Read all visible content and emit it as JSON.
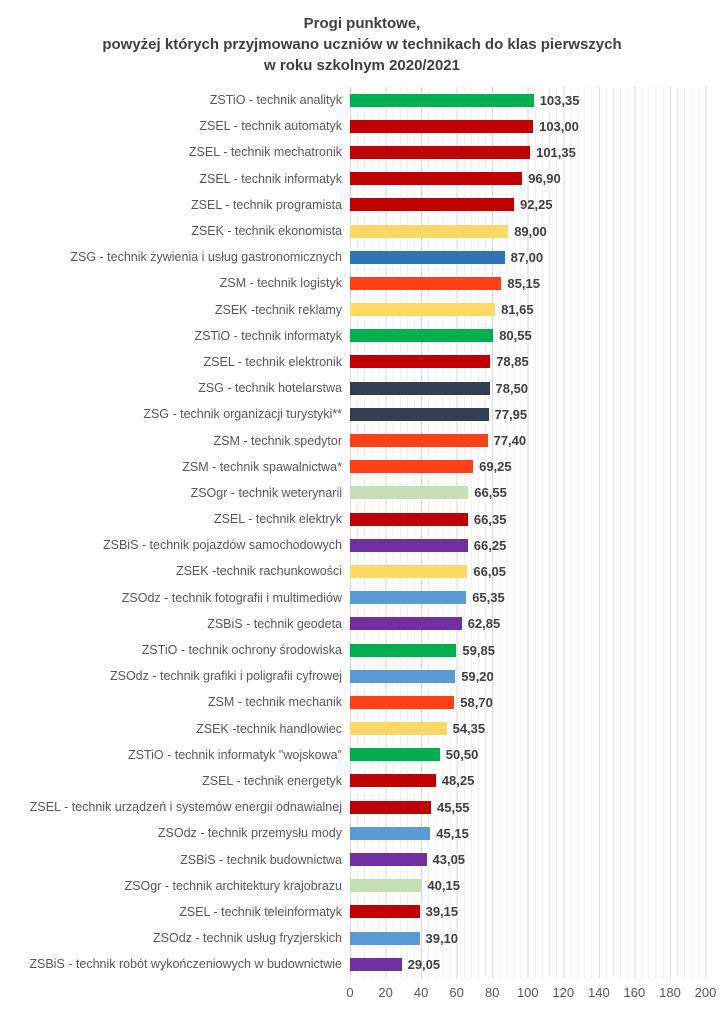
{
  "title": {
    "line1": "Progi punktowe,",
    "line2": "powyżej których przyjmowano uczniów w technikach do klas pierwszych",
    "line3": "w roku szkolnym 2020/2021"
  },
  "palette": {
    "green": "#00B050",
    "dark_red": "#C00000",
    "gold": "#FFD966",
    "steel_blue": "#2E75B6",
    "orange_red": "#FF4019",
    "dark_slate": "#333F50",
    "light_green": "#C5E0B4",
    "purple": "#7030A0",
    "light_blue": "#5B9BD5",
    "grid_major": "#d9d9d9",
    "grid_minor": "#f1f1f1",
    "label_gray": "#595959",
    "value_gray": "#404040"
  },
  "chart_data": {
    "type": "bar",
    "orientation": "horizontal",
    "title": "Progi punktowe, powyżej których przyjmowano uczniów w technikach do klas pierwszych w roku szkolnym 2020/2021",
    "xlabel": "",
    "ylabel": "",
    "xlim": [
      0,
      200
    ],
    "x_ticks": [
      0,
      20,
      40,
      60,
      80,
      100,
      120,
      140,
      160,
      180,
      200
    ],
    "grid": true,
    "legend": false,
    "bars": [
      {
        "label": "ZSTiO - technik analityk",
        "value": 103.35,
        "value_label": "103,35",
        "color": "#00B050"
      },
      {
        "label": "ZSEL - technik automatyk",
        "value": 103.0,
        "value_label": "103,00",
        "color": "#C00000"
      },
      {
        "label": "ZSEL - technik mechatronik",
        "value": 101.35,
        "value_label": "101,35",
        "color": "#C00000"
      },
      {
        "label": "ZSEL - technik informatyk",
        "value": 96.9,
        "value_label": "96,90",
        "color": "#C00000"
      },
      {
        "label": "ZSEL - technik programista",
        "value": 92.25,
        "value_label": "92,25",
        "color": "#C00000"
      },
      {
        "label": "ZSEK - technik ekonomista",
        "value": 89.0,
        "value_label": "89,00",
        "color": "#FFD966"
      },
      {
        "label": "ZSG - technik żywienia i usług gastronomicznych",
        "value": 87.0,
        "value_label": "87,00",
        "color": "#2E75B6"
      },
      {
        "label": "ZSM - technik logistyk",
        "value": 85.15,
        "value_label": "85,15",
        "color": "#FF4019"
      },
      {
        "label": "ZSEK -technik reklamy",
        "value": 81.65,
        "value_label": "81,65",
        "color": "#FFD966"
      },
      {
        "label": "ZSTiO - technik informatyk",
        "value": 80.55,
        "value_label": "80,55",
        "color": "#00B050"
      },
      {
        "label": "ZSEL - technik elektronik",
        "value": 78.85,
        "value_label": "78,85",
        "color": "#C00000"
      },
      {
        "label": "ZSG - technik hotelarstwa",
        "value": 78.5,
        "value_label": "78,50",
        "color": "#333F50"
      },
      {
        "label": "ZSG - technik organizacji turystyki**",
        "value": 77.95,
        "value_label": "77,95",
        "color": "#333F50"
      },
      {
        "label": "ZSM - technik spedytor",
        "value": 77.4,
        "value_label": "77,40",
        "color": "#FF4019"
      },
      {
        "label": "ZSM - technik spawalnictwa*",
        "value": 69.25,
        "value_label": "69,25",
        "color": "#FF4019"
      },
      {
        "label": "ZSOgr - technik weterynarii",
        "value": 66.55,
        "value_label": "66,55",
        "color": "#C5E0B4"
      },
      {
        "label": "ZSEL - technik elektryk",
        "value": 66.35,
        "value_label": "66,35",
        "color": "#C00000"
      },
      {
        "label": "ZSBiS - technik pojazdów samochodowych",
        "value": 66.25,
        "value_label": "66,25",
        "color": "#7030A0"
      },
      {
        "label": "ZSEK -technik rachunkowości",
        "value": 66.05,
        "value_label": "66,05",
        "color": "#FFD966"
      },
      {
        "label": "ZSOdz - technik fotografii i multimediów",
        "value": 65.35,
        "value_label": "65,35",
        "color": "#5B9BD5"
      },
      {
        "label": "ZSBiS - technik geodeta",
        "value": 62.85,
        "value_label": "62,85",
        "color": "#7030A0"
      },
      {
        "label": "ZSTiO - technik ochrony środowiska",
        "value": 59.85,
        "value_label": "59,85",
        "color": "#00B050"
      },
      {
        "label": "ZSOdz - technik grafiki i poligrafii cyfrowej",
        "value": 59.2,
        "value_label": "59,20",
        "color": "#5B9BD5"
      },
      {
        "label": "ZSM - technik mechanik",
        "value": 58.7,
        "value_label": "58,70",
        "color": "#FF4019"
      },
      {
        "label": "ZSEK -technik handlowiec",
        "value": 54.35,
        "value_label": "54,35",
        "color": "#FFD966"
      },
      {
        "label": "ZSTiO - technik informatyk \"wojskowa\"",
        "value": 50.5,
        "value_label": "50,50",
        "color": "#00B050"
      },
      {
        "label": "ZSEL - technik energetyk",
        "value": 48.25,
        "value_label": "48,25",
        "color": "#C00000"
      },
      {
        "label": "ZSEL - technik urządzeń i systemów energii odnawialnej",
        "value": 45.55,
        "value_label": "45,55",
        "color": "#C00000"
      },
      {
        "label": "ZSOdz - technik przemysłu mody",
        "value": 45.15,
        "value_label": "45,15",
        "color": "#5B9BD5"
      },
      {
        "label": "ZSBiS - technik budownictwa",
        "value": 43.05,
        "value_label": "43,05",
        "color": "#7030A0"
      },
      {
        "label": "ZSOgr - technik architektury krajobrazu",
        "value": 40.15,
        "value_label": "40,15",
        "color": "#C5E0B4"
      },
      {
        "label": "ZSEL - technik teleinformatyk",
        "value": 39.15,
        "value_label": "39,15",
        "color": "#C00000"
      },
      {
        "label": "ZSOdz - technik usług fryzjerskich",
        "value": 39.1,
        "value_label": "39,10",
        "color": "#5B9BD5"
      },
      {
        "label": "ZSBiS - technik robót wykończeniowych w budownictwie",
        "value": 29.05,
        "value_label": "29,05",
        "color": "#7030A0"
      }
    ]
  }
}
